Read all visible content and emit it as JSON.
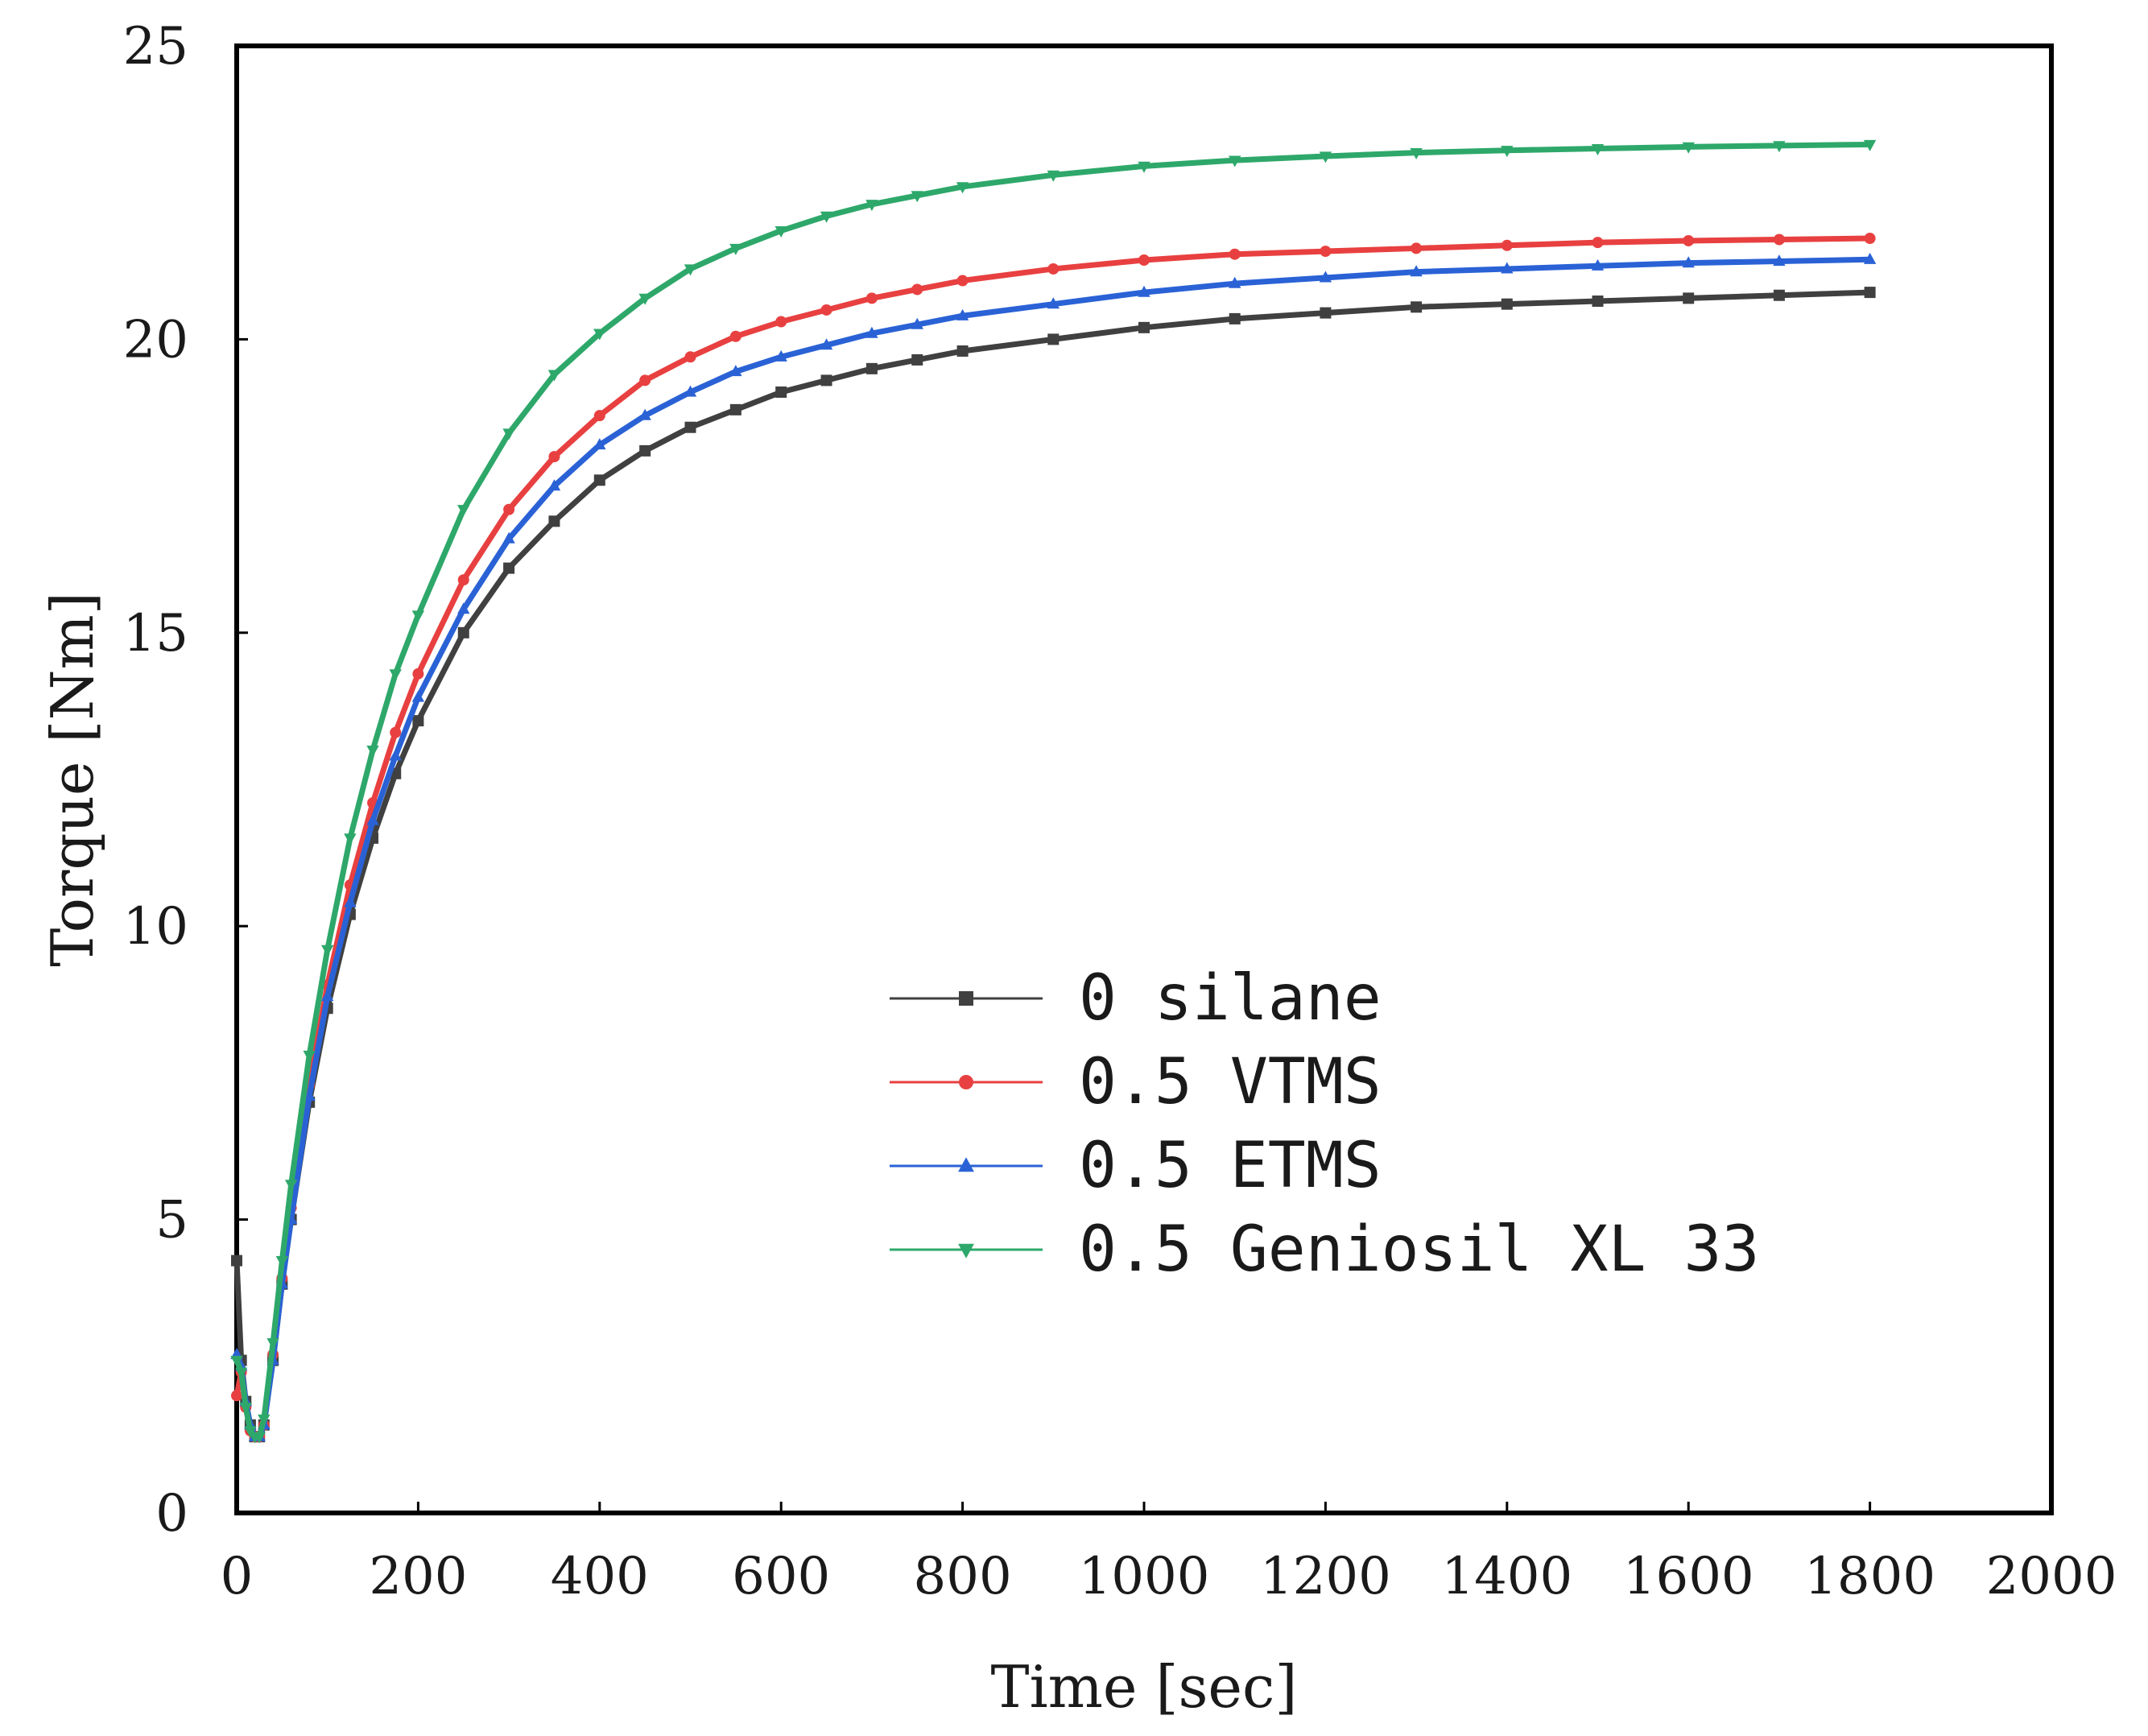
{
  "chart_data": {
    "type": "line",
    "title": "",
    "xlabel": "Time [sec]",
    "ylabel": "Torque [Nm]",
    "xlim": [
      0,
      2000
    ],
    "ylim": [
      0,
      25
    ],
    "xticks": [
      "0",
      "200",
      "400",
      "600",
      "800",
      "1000",
      "1200",
      "1400",
      "1600",
      "1800",
      "2000"
    ],
    "yticks": [
      "0",
      "5",
      "10",
      "15",
      "20",
      "25"
    ],
    "grid": false,
    "legend_position": "center-right",
    "x": [
      0,
      5,
      10,
      15,
      20,
      25,
      30,
      40,
      50,
      60,
      80,
      100,
      125,
      150,
      175,
      200,
      250,
      300,
      350,
      400,
      450,
      500,
      550,
      600,
      650,
      700,
      750,
      800,
      900,
      1000,
      1100,
      1200,
      1300,
      1400,
      1500,
      1600,
      1700,
      1800
    ],
    "series": [
      {
        "name": "0 silane",
        "color": "#404040",
        "marker": "square",
        "values": [
          4.3,
          2.6,
          1.9,
          1.5,
          1.3,
          1.3,
          1.5,
          2.6,
          3.9,
          5.0,
          7.0,
          8.6,
          10.2,
          11.5,
          12.6,
          13.5,
          15.0,
          16.1,
          16.9,
          17.6,
          18.1,
          18.5,
          18.8,
          19.1,
          19.3,
          19.5,
          19.65,
          19.8,
          20.0,
          20.2,
          20.35,
          20.45,
          20.55,
          20.6,
          20.65,
          20.7,
          20.75,
          20.8
        ]
      },
      {
        "name": "0.5 VTMS",
        "color": "#e84040",
        "marker": "circle",
        "values": [
          2.0,
          2.4,
          1.8,
          1.4,
          1.3,
          1.3,
          1.5,
          2.7,
          4.0,
          5.2,
          7.3,
          9.0,
          10.7,
          12.1,
          13.3,
          14.3,
          15.9,
          17.1,
          18.0,
          18.7,
          19.3,
          19.7,
          20.05,
          20.3,
          20.5,
          20.7,
          20.85,
          21.0,
          21.2,
          21.35,
          21.45,
          21.5,
          21.55,
          21.6,
          21.65,
          21.68,
          21.7,
          21.72
        ]
      },
      {
        "name": "0.5 ETMS",
        "color": "#2a62d6",
        "marker": "triangle-up",
        "values": [
          2.7,
          2.5,
          1.9,
          1.5,
          1.3,
          1.3,
          1.5,
          2.6,
          3.9,
          5.0,
          7.1,
          8.8,
          10.4,
          11.8,
          12.9,
          13.9,
          15.4,
          16.6,
          17.5,
          18.2,
          18.7,
          19.1,
          19.45,
          19.7,
          19.9,
          20.1,
          20.25,
          20.4,
          20.6,
          20.8,
          20.95,
          21.05,
          21.15,
          21.2,
          21.25,
          21.3,
          21.33,
          21.36
        ]
      },
      {
        "name": "0.5 Geniosil XL 33",
        "color": "#2ea86a",
        "marker": "triangle-down",
        "values": [
          2.6,
          2.4,
          1.8,
          1.4,
          1.3,
          1.3,
          1.6,
          2.9,
          4.3,
          5.6,
          7.8,
          9.6,
          11.5,
          13.0,
          14.3,
          15.3,
          17.1,
          18.4,
          19.4,
          20.1,
          20.7,
          21.2,
          21.55,
          21.85,
          22.1,
          22.3,
          22.45,
          22.6,
          22.8,
          22.95,
          23.05,
          23.12,
          23.18,
          23.22,
          23.25,
          23.28,
          23.3,
          23.32
        ]
      }
    ]
  }
}
